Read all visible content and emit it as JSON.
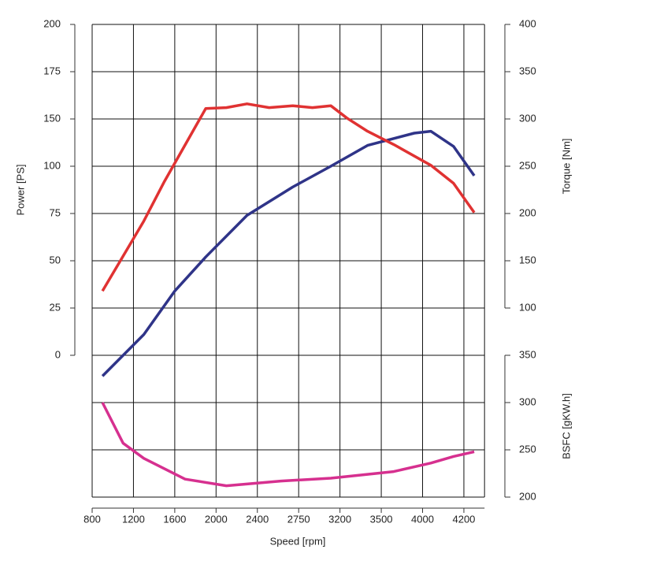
{
  "chart_data": {
    "type": "line",
    "x_label": "Speed [rpm]",
    "xlim": [
      800,
      4300
    ],
    "xticks": [
      800,
      1200,
      1600,
      2000,
      2400,
      2750,
      3200,
      3500,
      4000,
      4200
    ],
    "y_label": "Power [PS]",
    "ylim": [
      0,
      200
    ],
    "yticks": [
      0,
      25,
      50,
      75,
      100,
      150,
      175,
      200
    ],
    "y2_label": "Torque [Nm]",
    "y2lim": [
      100,
      400
    ],
    "y2ticks": [
      100,
      150,
      200,
      250,
      300,
      350,
      400
    ],
    "y3_label": "BSFC [gKW.h]",
    "y3lim": [
      200,
      350
    ],
    "y3ticks": [
      200,
      250,
      300,
      350
    ],
    "grid": true,
    "series": [
      {
        "axis": "y",
        "color": "#2f3488",
        "x": [
          900,
          1300,
          1600,
          1900,
          2300,
          2700,
          3100,
          3400,
          3900,
          4040,
          4150,
          4250
        ],
        "values": [
          -11,
          11,
          34,
          52,
          74,
          89,
          100,
          122,
          135,
          137,
          121,
          95
        ]
      },
      {
        "axis": "y2",
        "color": "#e03232",
        "x": [
          900,
          1300,
          1500,
          1900,
          2100,
          2300,
          2500,
          2700,
          2900,
          3100,
          3250,
          3400,
          3650,
          4040,
          4150,
          4250
        ],
        "values": [
          118,
          192,
          234,
          311,
          312,
          316,
          312,
          314,
          312,
          314,
          301,
          287,
          273,
          251,
          232,
          201
        ]
      },
      {
        "axis": "y3",
        "color": "#d6308f",
        "x": [
          900,
          1100,
          1300,
          1700,
          2100,
          2600,
          3100,
          3650,
          4040,
          4150,
          4250
        ],
        "values": [
          300,
          257,
          241,
          219,
          212,
          217,
          220,
          227,
          236,
          243,
          248
        ]
      }
    ]
  }
}
